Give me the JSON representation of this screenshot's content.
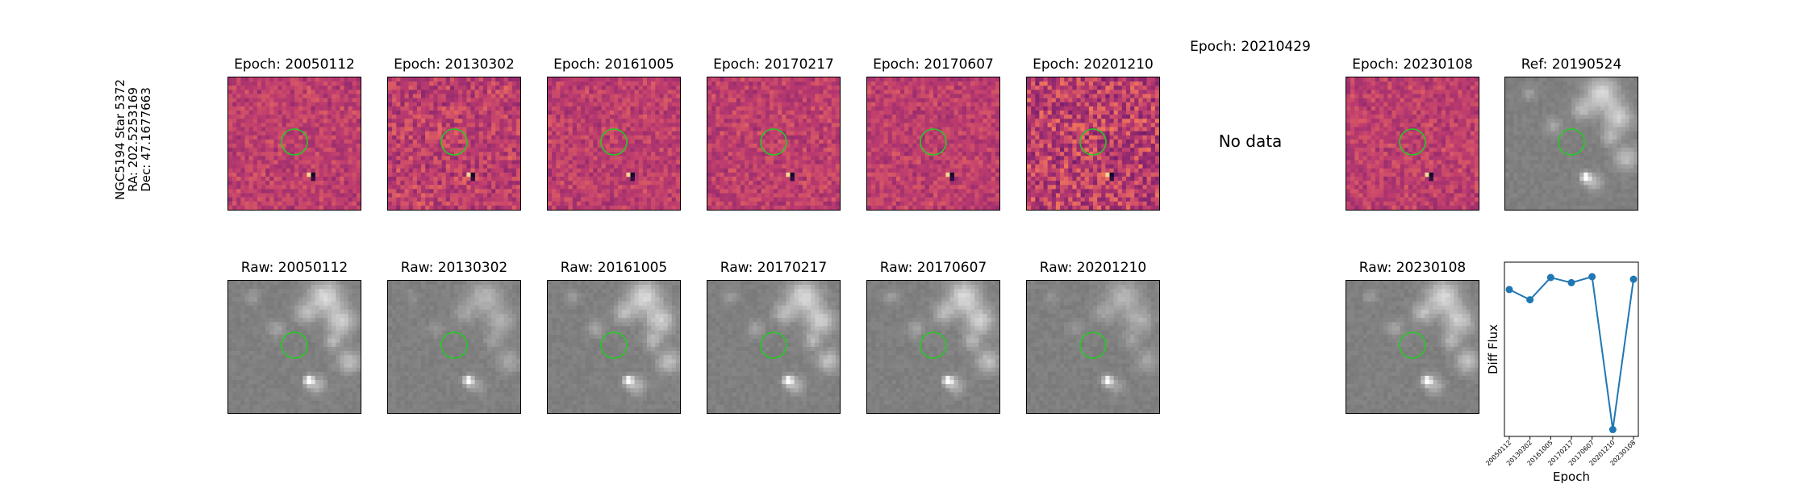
{
  "star_label": {
    "name": "NGC5194 Star 5372",
    "ra": "RA: 202.5253169",
    "dec": "Dec: 47.1677663"
  },
  "diff_row": [
    {
      "title": "Epoch: 20050112",
      "has_data": true
    },
    {
      "title": "Epoch: 20130302",
      "has_data": true
    },
    {
      "title": "Epoch: 20161005",
      "has_data": true
    },
    {
      "title": "Epoch: 20170217",
      "has_data": true
    },
    {
      "title": "Epoch: 20170607",
      "has_data": true
    },
    {
      "title": "Epoch: 20201210",
      "has_data": true
    },
    {
      "title": "Epoch: 20210429",
      "has_data": false,
      "no_data_text": "No data"
    },
    {
      "title": "Epoch: 20230108",
      "has_data": true
    }
  ],
  "ref_panel": {
    "title": "Ref: 20190524"
  },
  "raw_row": [
    {
      "title": "Raw: 20050112"
    },
    {
      "title": "Raw: 20130302"
    },
    {
      "title": "Raw: 20161005"
    },
    {
      "title": "Raw: 20170217"
    },
    {
      "title": "Raw: 20170607"
    },
    {
      "title": "Raw: 20201210"
    },
    {
      "title": "Raw: 20230108"
    }
  ],
  "colors": {
    "circle": "#22cc22",
    "series": "#1f77b4",
    "diff_base": "#b5406e",
    "raw_base": "#808080"
  },
  "chart_data": {
    "type": "line",
    "xlabel": "Epoch",
    "ylabel": "Diff Flux",
    "categories": [
      "20050112",
      "20130302",
      "20161005",
      "20170217",
      "20170607",
      "20201210",
      "20230108"
    ],
    "series": [
      {
        "values": [
          0.82,
          0.76,
          0.89,
          0.86,
          0.895,
          0.0,
          0.88
        ]
      }
    ],
    "ylim": [
      -0.04,
      0.98
    ],
    "grid": false,
    "yticks_visible": false
  }
}
